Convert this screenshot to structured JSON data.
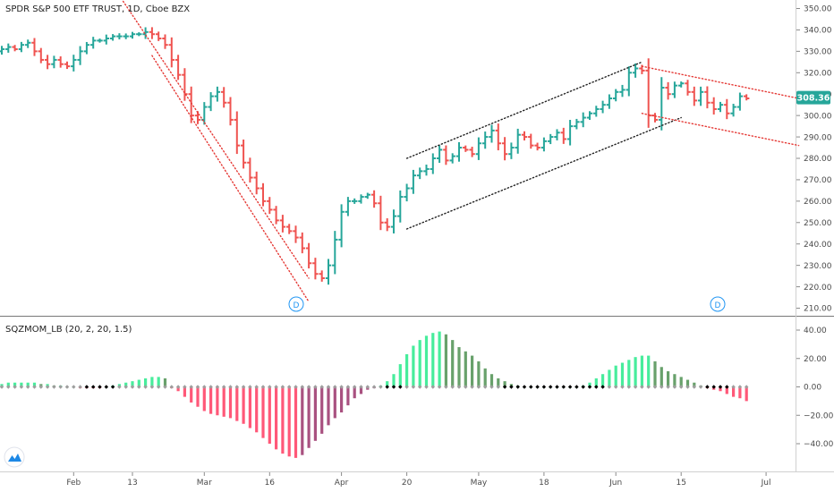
{
  "header": {
    "title": "SPDR S&P 500 ETF TRUST, 1D, Cboe BZX",
    "indicator_label": "SQZMOM_LB (20, 2, 20, 1.5)"
  },
  "price_badge": "308.36",
  "markers": [
    "D",
    "D"
  ],
  "colors": {
    "up": "#26a69a",
    "down": "#ef5350",
    "lime": "#00e676",
    "green": "#2e7d32",
    "red": "#ff1744",
    "maroon": "#880e4f",
    "badge": "#26a69a",
    "channel_black": "#222222",
    "channel_red": "#e53935",
    "marker": "#2196f3"
  },
  "chart_data": [
    {
      "type": "ohlc",
      "title": "SPDR S&P 500 ETF TRUST, 1D, Cboe BZX",
      "ylim": [
        205,
        355
      ],
      "price_ticks": [
        "350.00",
        "340.00",
        "330.00",
        "320.00",
        "310.00",
        "300.00",
        "290.00",
        "280.00",
        "270.00",
        "260.00",
        "250.00",
        "240.00",
        "230.00",
        "220.00",
        "210.00"
      ],
      "price_tick_values": [
        350,
        340,
        330,
        320,
        310,
        300,
        290,
        280,
        270,
        260,
        250,
        240,
        230,
        220,
        210
      ],
      "x_ticks": [
        "Feb",
        "13",
        "Mar",
        "16",
        "Apr",
        "20",
        "May",
        "18",
        "Jun",
        "15",
        "Jul"
      ],
      "x_tick_index": [
        11,
        20,
        31,
        41,
        52,
        62,
        73,
        83,
        94,
        104,
        117
      ],
      "closes": [
        331,
        332,
        331,
        333,
        334,
        330,
        326,
        324,
        326,
        324,
        323,
        326,
        330,
        333,
        335,
        335,
        336,
        337,
        337,
        337,
        338,
        338,
        339,
        338,
        336,
        333,
        326,
        319,
        310,
        300,
        298,
        304,
        309,
        311,
        306,
        298,
        286,
        278,
        271,
        266,
        260,
        256,
        251,
        248,
        246,
        243,
        238,
        231,
        226,
        224,
        230,
        242,
        255,
        260,
        260,
        262,
        263,
        259,
        250,
        248,
        253,
        262,
        266,
        272,
        274,
        275,
        280,
        284,
        279,
        281,
        285,
        284,
        282,
        287,
        290,
        293,
        287,
        282,
        285,
        291,
        290,
        286,
        285,
        288,
        290,
        292,
        289,
        295,
        297,
        299,
        301,
        303,
        305,
        308,
        311,
        312,
        320,
        322,
        321,
        300,
        298,
        313,
        310,
        314,
        315,
        311,
        307,
        311,
        306,
        303,
        305,
        301,
        304,
        309,
        308
      ],
      "trendlines": [
        {
          "style": "dotted-black",
          "from": [
            62,
            280
          ],
          "to": [
            98,
            325
          ]
        },
        {
          "style": "dotted-black",
          "from": [
            62,
            247
          ],
          "to": [
            104,
            299
          ]
        },
        {
          "style": "dotted-red",
          "from": [
            18,
            356
          ],
          "to": [
            47,
            224
          ]
        },
        {
          "style": "dotted-red",
          "from": [
            23,
            328
          ],
          "to": [
            47,
            213
          ]
        },
        {
          "style": "dotted-red",
          "from": [
            98,
            323
          ],
          "to": [
            122,
            308
          ]
        },
        {
          "style": "dotted-red",
          "from": [
            98,
            301
          ],
          "to": [
            122,
            286
          ]
        }
      ],
      "last_price": 308.36
    },
    {
      "type": "histogram",
      "title": "SQZMOM_LB (20, 2, 20, 1.5)",
      "ylim": [
        -55,
        45
      ],
      "y_ticks": [
        "40.00",
        "20.00",
        "0.00",
        "−20.00",
        "−40.00"
      ],
      "y_tick_values": [
        40,
        20,
        0,
        -20,
        -40
      ],
      "values": [
        2,
        3,
        3,
        3,
        3,
        3,
        2,
        2,
        1,
        1,
        0,
        0,
        -1,
        -1,
        -1,
        -1,
        0,
        1,
        2,
        3,
        4,
        5,
        6,
        7,
        7,
        6,
        -1,
        -3,
        -7,
        -11,
        -14,
        -17,
        -19,
        -20,
        -21,
        -22,
        -24,
        -26,
        -29,
        -32,
        -36,
        -40,
        -44,
        -47,
        -49,
        -50,
        -48,
        -43,
        -38,
        -33,
        -27,
        -22,
        -18,
        -13,
        -8,
        -5,
        -2,
        -1,
        1,
        4,
        9,
        16,
        23,
        29,
        33,
        36,
        38,
        39,
        37,
        33,
        28,
        25,
        22,
        18,
        13,
        9,
        6,
        4,
        2,
        1,
        0,
        0,
        0,
        0,
        0,
        0,
        0,
        0,
        0,
        1,
        3,
        6,
        9,
        12,
        15,
        17,
        19,
        21,
        22,
        22,
        18,
        14,
        11,
        9,
        7,
        5,
        3,
        1,
        -1,
        -2,
        -3,
        -5,
        -7,
        -8,
        -10
      ],
      "squeeze_on_ranges": [
        [
          13,
          17
        ],
        [
          59,
          61
        ],
        [
          77,
          92
        ],
        [
          108,
          111
        ]
      ],
      "squeeze_off_ranges": [
        [
          0,
          12
        ],
        [
          18,
          58
        ],
        [
          62,
          76
        ],
        [
          93,
          107
        ],
        [
          112,
          113
        ]
      ]
    }
  ]
}
